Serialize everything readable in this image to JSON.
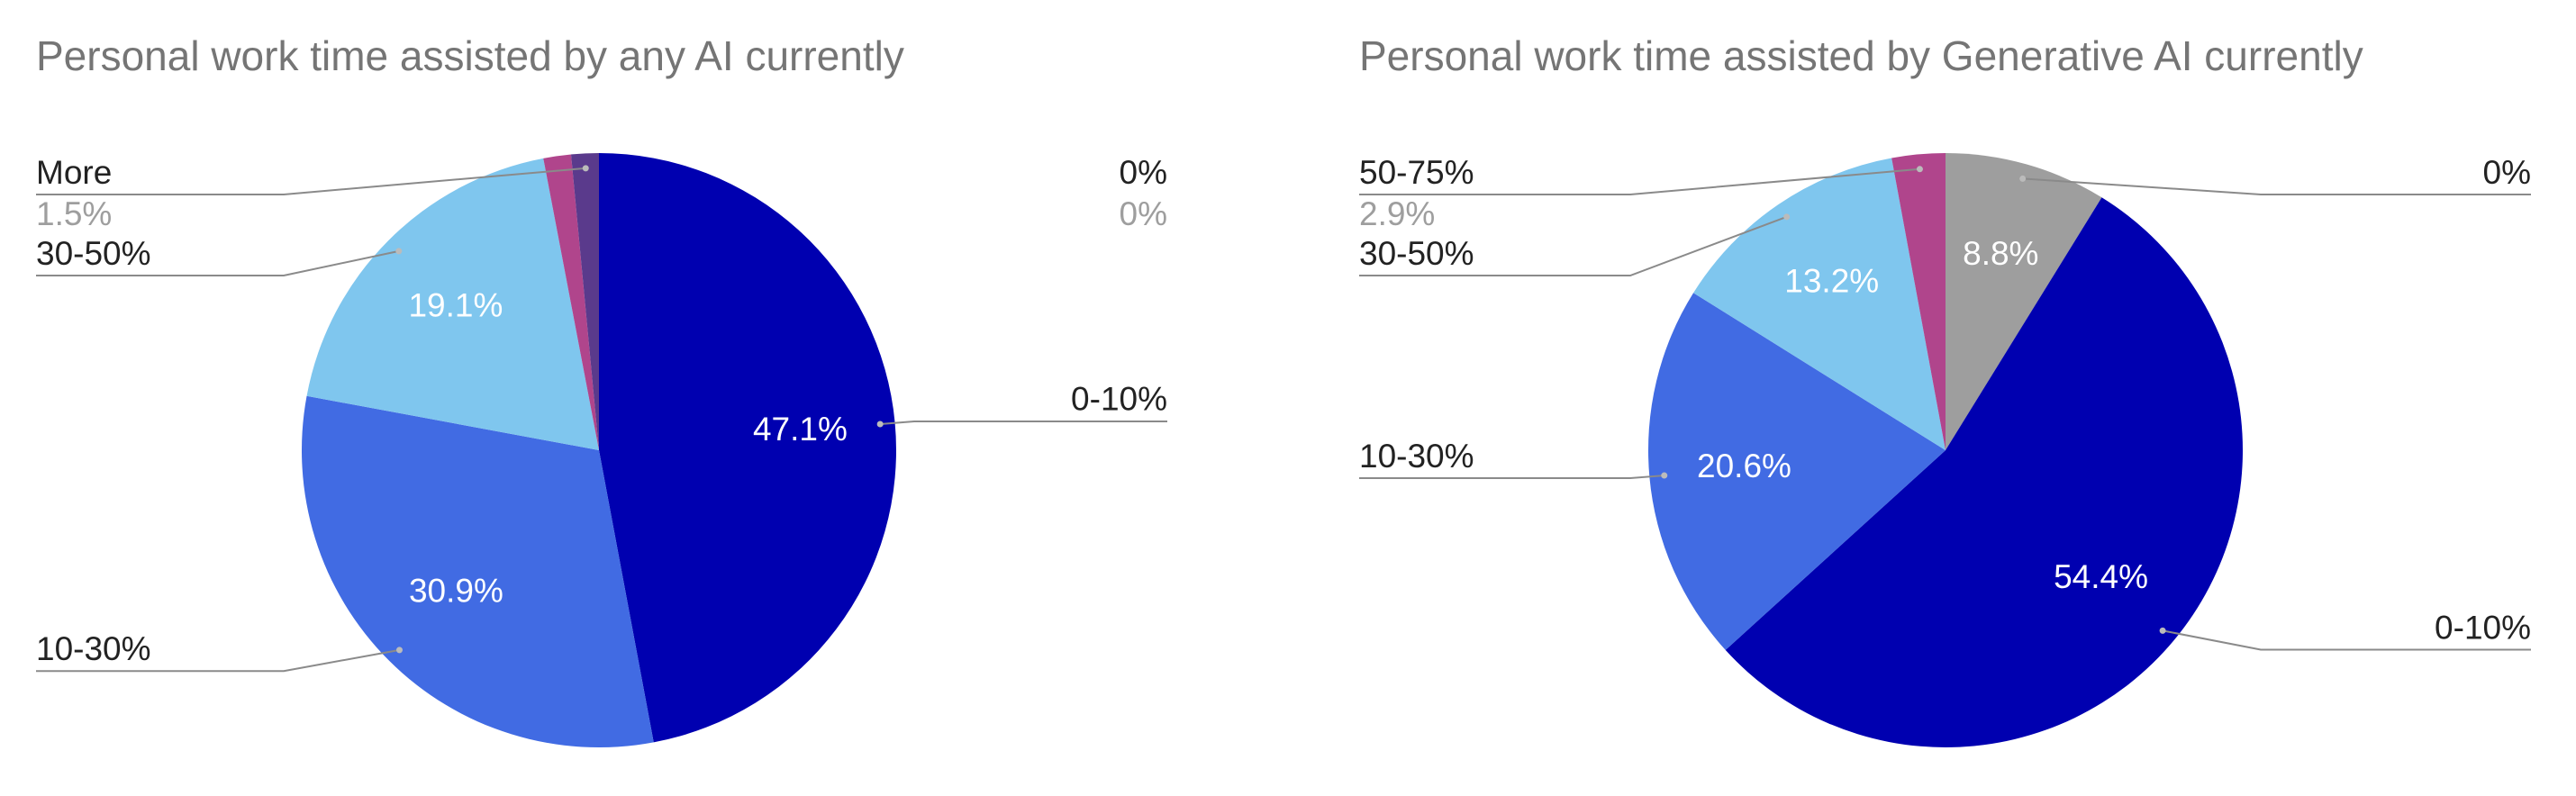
{
  "chart_data": [
    {
      "type": "pie",
      "title": "Personal work time assisted by any AI currently",
      "categories": [
        "0%",
        "0-10%",
        "10-30%",
        "30-50%",
        null,
        "More"
      ],
      "values": [
        0,
        47.1,
        30.9,
        19.1,
        1.5,
        1.5
      ],
      "value_labels": [
        "0%",
        "47.1%",
        "30.9%",
        "19.1%",
        null,
        "1.5%"
      ],
      "colors": [
        "#9e9e9e",
        "#0000b0",
        "#416be3",
        "#7fc6ee",
        "#b0458c",
        "#5a3a8c"
      ]
    },
    {
      "type": "pie",
      "title": "Personal work time assisted by Generative AI currently",
      "categories": [
        "0%",
        "0-10%",
        "10-30%",
        "30-50%",
        "50-75%"
      ],
      "values": [
        8.8,
        54.4,
        20.6,
        13.2,
        2.9
      ],
      "value_labels": [
        "8.8%",
        "54.4%",
        "20.6%",
        "13.2%",
        "2.9%"
      ],
      "colors": [
        "#9e9e9e",
        "#0000b0",
        "#416be3",
        "#7fc6ee",
        "#b0458c"
      ]
    }
  ]
}
